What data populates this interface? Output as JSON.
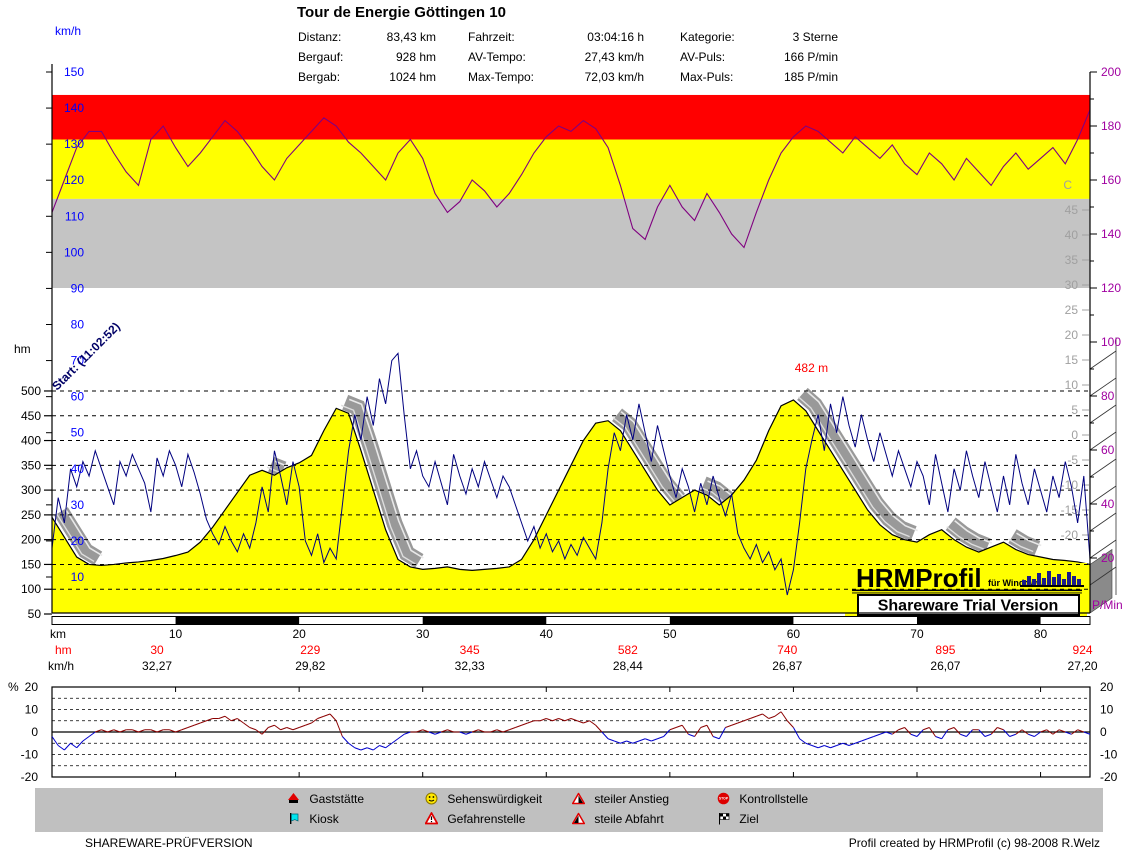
{
  "title": "Tour de Energie Göttingen 10",
  "stats": {
    "col1": [
      {
        "label": "Distanz:",
        "value": "83,43 km"
      },
      {
        "label": "Bergauf:",
        "value": "928 hm"
      },
      {
        "label": "Bergab:",
        "value": "1024 hm"
      }
    ],
    "col2": [
      {
        "label": "Fahrzeit:",
        "value": "03:04:16 h"
      },
      {
        "label": "AV-Tempo:",
        "value": "27,43 km/h"
      },
      {
        "label": "Max-Tempo:",
        "value": "72,03 km/h"
      }
    ],
    "col3": [
      {
        "label": "Kategorie:",
        "value": "3 Sterne"
      },
      {
        "label": "AV-Puls:",
        "value": "166 P/min"
      },
      {
        "label": "Max-Puls:",
        "value": "185 P/min"
      }
    ]
  },
  "corner_labels": {
    "speed": "km/h",
    "elevation": "hm",
    "pulse": "P/Min"
  },
  "logo": {
    "brand": "HRMProfil",
    "sub": "für Windows",
    "trial": "Shareware Trial  Version"
  },
  "footer": {
    "left": "SHAREWARE-PRÜFVERSION",
    "right": "Profil created by HRMProfil (c) 98-2008 R.Welz"
  },
  "legend": {
    "items": [
      {
        "icon": "gaststaette-icon",
        "label": "Gaststätte"
      },
      {
        "icon": "sehenswuerdigkeit-icon",
        "label": "Sehenswürdigkeit"
      },
      {
        "icon": "steiler-anstieg-icon",
        "label": "steiler Anstieg"
      },
      {
        "icon": "kontrollstelle-icon",
        "label": "Kontrollstelle"
      },
      {
        "icon": "kiosk-icon",
        "label": "Kiosk"
      },
      {
        "icon": "gefahrenstelle-icon",
        "label": "Gefahrenstelle"
      },
      {
        "icon": "steile-abfahrt-icon",
        "label": "steile Abfahrt"
      },
      {
        "icon": "ziel-icon",
        "label": "Ziel"
      }
    ]
  },
  "chart_data": {
    "type": "line",
    "title": "Tour de Energie Göttingen 10",
    "axes": {
      "x": {
        "label": "km",
        "ticks": [
          10,
          20,
          30,
          40,
          50,
          60,
          70,
          80
        ],
        "max_km": 83.43
      },
      "left_speed": {
        "label": "km/h",
        "color": "#0000FF",
        "min": 0,
        "max": 150,
        "ticks": [
          150,
          140,
          130,
          120,
          110,
          100,
          90,
          80,
          70,
          60,
          50,
          40,
          30,
          20,
          10
        ]
      },
      "left_elevation": {
        "label": "hm",
        "min": 50,
        "max": 500,
        "ticks": [
          500,
          450,
          400,
          350,
          300,
          250,
          200,
          150,
          100,
          50
        ]
      },
      "right_pulse": {
        "label": "P/Min",
        "color": "#A000A0",
        "ticks": [
          200,
          180,
          160,
          140,
          120,
          100,
          80,
          60,
          40,
          20
        ]
      },
      "right_temp": {
        "label": "C",
        "color": "#A0A0A0",
        "ticks": [
          45,
          40,
          35,
          30,
          25,
          20,
          15,
          10,
          5,
          0,
          -5,
          -10,
          -15,
          -20
        ]
      }
    },
    "zones_pmin": {
      "red": [
        175,
        191.5
      ],
      "yellow": [
        153,
        175
      ],
      "gray": [
        120,
        153
      ]
    },
    "annotations": {
      "start": "Start: (11:02:52)",
      "peak": "482 m"
    },
    "segment_rows": {
      "hm_label": "hm",
      "kmh_label": "km/h",
      "positions_km": [
        8.5,
        20.9,
        33.8,
        46.6,
        59.5,
        72.3,
        83.4
      ],
      "hm": [
        "30",
        "229",
        "345",
        "582",
        "740",
        "895",
        "924"
      ],
      "kmh": [
        "32,27",
        "29,82",
        "32,33",
        "28,44",
        "26,87",
        "26,07",
        "27,20"
      ]
    },
    "gradient_axis": {
      "label": "%",
      "ticks": [
        20,
        10,
        0,
        -10,
        -20
      ],
      "range": [
        -20,
        20
      ]
    },
    "series": {
      "elevation_hm": {
        "step_km": 1,
        "color": "#FFFF00",
        "values": [
          245,
          205,
          165,
          150,
          148,
          150,
          153,
          155,
          158,
          162,
          168,
          175,
          195,
          225,
          260,
          295,
          330,
          340,
          330,
          345,
          355,
          370,
          420,
          465,
          455,
          380,
          300,
          220,
          160,
          145,
          140,
          142,
          145,
          140,
          138,
          140,
          142,
          145,
          160,
          200,
          250,
          300,
          350,
          400,
          435,
          440,
          420,
          380,
          340,
          300,
          270,
          285,
          300,
          290,
          270,
          290,
          320,
          360,
          420,
          470,
          482,
          460,
          420,
          380,
          340,
          300,
          260,
          230,
          210,
          200,
          195,
          210,
          220,
          200,
          185,
          175,
          185,
          195,
          180,
          170,
          165,
          160,
          158,
          155,
          150
        ]
      },
      "speed_kmh": {
        "step_km": 0.5,
        "color": "#000080",
        "values": [
          18,
          32,
          25,
          40,
          35,
          42,
          38,
          45,
          40,
          35,
          30,
          42,
          38,
          44,
          40,
          36,
          28,
          43,
          38,
          45,
          41,
          35,
          44,
          39,
          33,
          26,
          22,
          19,
          24,
          20,
          17,
          22,
          18,
          25,
          35,
          28,
          45,
          38,
          30,
          42,
          35,
          20,
          16,
          22,
          14,
          18,
          15,
          30,
          45,
          55,
          48,
          60,
          52,
          65,
          58,
          70,
          72,
          55,
          40,
          45,
          38,
          35,
          42,
          36,
          30,
          44,
          38,
          33,
          40,
          35,
          42,
          37,
          32,
          38,
          35,
          30,
          25,
          20,
          24,
          18,
          22,
          17,
          20,
          15,
          19,
          16,
          21,
          18,
          15,
          25,
          40,
          50,
          45,
          55,
          48,
          58,
          50,
          42,
          52,
          45,
          38,
          32,
          40,
          35,
          28,
          36,
          30,
          38,
          32,
          27,
          33,
          22,
          18,
          15,
          19,
          14,
          17,
          12,
          15,
          5,
          12,
          25,
          40,
          48,
          55,
          45,
          58,
          50,
          60,
          52,
          46,
          55,
          48,
          42,
          50,
          44,
          38,
          45,
          40,
          35,
          42,
          38,
          30,
          44,
          36,
          28,
          40,
          34,
          45,
          38,
          32,
          42,
          35,
          28,
          38,
          30,
          44,
          36,
          30,
          40,
          34,
          28,
          38,
          32,
          42,
          35,
          25,
          38,
          15
        ]
      },
      "pulse_pmin": {
        "step_km": 1,
        "color": "#800080",
        "values": [
          148,
          160,
          172,
          178,
          178,
          170,
          163,
          158,
          175,
          180,
          172,
          165,
          170,
          176,
          182,
          178,
          172,
          165,
          160,
          168,
          173,
          178,
          183,
          180,
          174,
          170,
          165,
          160,
          170,
          175,
          168,
          155,
          148,
          152,
          160,
          156,
          150,
          155,
          162,
          170,
          176,
          180,
          178,
          182,
          179,
          172,
          158,
          142,
          138,
          150,
          158,
          150,
          145,
          155,
          148,
          140,
          135,
          148,
          160,
          170,
          176,
          180,
          178,
          174,
          170,
          176,
          172,
          168,
          173,
          166,
          162,
          170,
          166,
          160,
          168,
          163,
          158,
          165,
          170,
          164,
          168,
          172,
          166,
          175,
          186
        ]
      },
      "gradient_pct": {
        "step_km": 0.5,
        "pos_color": "#8B0000",
        "neg_color": "#0000CC",
        "values": [
          -2,
          -6,
          -8,
          -5,
          -7,
          -4,
          -2,
          0,
          1,
          0,
          1,
          0,
          1,
          1,
          0,
          1,
          1,
          0,
          1,
          1,
          0,
          1,
          2,
          3,
          4,
          5,
          6,
          6,
          7,
          5,
          6,
          4,
          2,
          1,
          -1,
          2,
          3,
          1,
          2,
          1,
          2,
          3,
          4,
          6,
          7,
          8,
          5,
          -2,
          -5,
          -7,
          -8,
          -7,
          -8,
          -6,
          -7,
          -5,
          -3,
          -1,
          0,
          0,
          1,
          0,
          -1,
          0,
          1,
          0,
          0,
          -1,
          0,
          1,
          0,
          0,
          1,
          0,
          1,
          2,
          3,
          4,
          5,
          5,
          6,
          5,
          6,
          5,
          6,
          5,
          4,
          5,
          3,
          0,
          -3,
          -4,
          -5,
          -4,
          -5,
          -4,
          -3,
          -4,
          -3,
          -2,
          1,
          2,
          3,
          -1,
          -2,
          2,
          3,
          -2,
          -3,
          2,
          3,
          4,
          5,
          6,
          7,
          8,
          6,
          7,
          9,
          5,
          2,
          -3,
          -5,
          -6,
          -7,
          -6,
          -7,
          -6,
          -5,
          -6,
          -5,
          -4,
          -3,
          -2,
          -1,
          0,
          -1,
          1,
          2,
          -1,
          -2,
          1,
          2,
          -2,
          -3,
          1,
          2,
          -1,
          -2,
          1,
          1,
          -2,
          -1,
          2,
          1,
          -2,
          -1,
          1,
          -1,
          -2,
          0,
          1,
          -1,
          1,
          0,
          -1,
          1,
          0,
          -1
        ]
      }
    }
  }
}
